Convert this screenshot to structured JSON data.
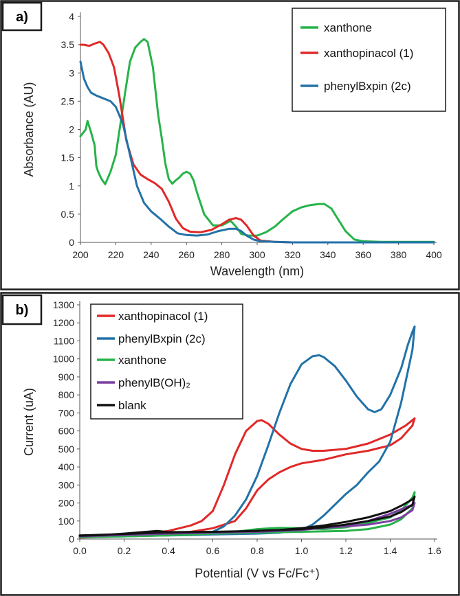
{
  "chart_data": [
    {
      "type": "line",
      "panel_label": "a)",
      "xlabel": "Wavelength (nm)",
      "ylabel": "Absorbance (AU)",
      "xlim": [
        200,
        400
      ],
      "ylim": [
        0,
        4
      ],
      "xticks": [
        "200",
        "220",
        "240",
        "260",
        "280",
        "300",
        "320",
        "340",
        "360",
        "380",
        "400"
      ],
      "yticks": [
        "0",
        "0.5",
        "1",
        "1.5",
        "2",
        "2.5",
        "3",
        "3.5",
        "4"
      ],
      "legend_position": "top-right",
      "grid": false,
      "series": [
        {
          "name": "xanthone",
          "color": "#27b34a",
          "x": [
            200,
            203,
            204,
            206,
            208,
            209,
            210,
            212,
            214,
            217,
            220,
            225,
            228,
            231,
            234,
            236,
            238,
            241,
            244,
            246,
            248,
            250,
            252,
            254,
            256,
            258,
            260,
            262,
            264,
            266,
            270,
            275,
            280,
            285,
            288,
            291,
            295,
            300,
            305,
            310,
            315,
            320,
            325,
            330,
            335,
            338,
            342,
            345,
            350,
            355,
            360,
            370,
            380,
            390,
            400
          ],
          "y": [
            1.88,
            2.0,
            2.15,
            1.95,
            1.72,
            1.35,
            1.25,
            1.12,
            1.03,
            1.25,
            1.55,
            2.6,
            3.2,
            3.45,
            3.55,
            3.6,
            3.55,
            3.1,
            2.25,
            1.85,
            1.4,
            1.12,
            1.04,
            1.1,
            1.15,
            1.22,
            1.25,
            1.22,
            1.1,
            0.88,
            0.5,
            0.3,
            0.3,
            0.38,
            0.28,
            0.15,
            0.12,
            0.12,
            0.18,
            0.28,
            0.42,
            0.55,
            0.62,
            0.66,
            0.68,
            0.68,
            0.6,
            0.45,
            0.2,
            0.05,
            0.02,
            0.01,
            0.01,
            0.01,
            0.01
          ]
        },
        {
          "name": "xanthopinacol (1)",
          "color": "#e02928",
          "x": [
            200,
            202,
            205,
            208,
            211,
            213,
            216,
            219,
            222,
            226,
            230,
            234,
            238,
            242,
            246,
            250,
            254,
            258,
            262,
            268,
            274,
            280,
            284,
            288,
            291,
            294,
            298,
            302,
            310,
            320,
            340,
            360,
            380,
            400
          ],
          "y": [
            3.5,
            3.5,
            3.48,
            3.52,
            3.55,
            3.5,
            3.35,
            3.1,
            2.6,
            1.8,
            1.38,
            1.2,
            1.12,
            1.05,
            0.95,
            0.72,
            0.42,
            0.25,
            0.19,
            0.18,
            0.22,
            0.32,
            0.4,
            0.43,
            0.4,
            0.3,
            0.12,
            0.03,
            0.01,
            0.0,
            0.0,
            0.0,
            0.0,
            0.0
          ]
        },
        {
          "name": "phenylBxpin (2c)",
          "color": "#2272a8",
          "x": [
            200,
            202,
            204,
            206,
            209,
            213,
            217,
            220,
            224,
            228,
            232,
            236,
            240,
            245,
            250,
            255,
            260,
            266,
            272,
            278,
            284,
            288,
            291,
            294,
            298,
            302,
            310,
            320,
            340,
            360,
            380,
            400
          ],
          "y": [
            3.2,
            2.9,
            2.75,
            2.65,
            2.6,
            2.55,
            2.5,
            2.4,
            2.1,
            1.55,
            1.0,
            0.7,
            0.55,
            0.42,
            0.28,
            0.16,
            0.13,
            0.12,
            0.14,
            0.2,
            0.24,
            0.24,
            0.2,
            0.12,
            0.05,
            0.02,
            0.01,
            0.0,
            0.0,
            0.0,
            0.0,
            0.0
          ]
        }
      ]
    },
    {
      "type": "line",
      "panel_label": "b)",
      "xlabel": "Potential (V vs Fc/Fc⁺)",
      "ylabel": "Current  (uA)",
      "xlim": [
        0,
        1.6
      ],
      "ylim": [
        0,
        1300
      ],
      "xticks": [
        "0.0",
        "0.2",
        "0.4",
        "0.6",
        "0.8",
        "1.0",
        "1.2",
        "1.4",
        "1.6"
      ],
      "yticks": [
        "0",
        "100",
        "200",
        "300",
        "400",
        "500",
        "600",
        "700",
        "800",
        "900",
        "1000",
        "1100",
        "1200",
        "1300"
      ],
      "legend_position": "top-left",
      "grid": false,
      "series": [
        {
          "name": "xanthopinacol (1)",
          "color": "#e02928",
          "x": [
            0.0,
            0.1,
            0.2,
            0.3,
            0.4,
            0.5,
            0.55,
            0.6,
            0.65,
            0.7,
            0.75,
            0.8,
            0.82,
            0.85,
            0.9,
            0.95,
            1.0,
            1.05,
            1.1,
            1.2,
            1.3,
            1.4,
            1.47,
            1.5,
            1.51,
            1.5,
            1.45,
            1.4,
            1.3,
            1.2,
            1.1,
            1.0,
            0.95,
            0.9,
            0.85,
            0.8,
            0.78,
            0.75,
            0.7,
            0.6,
            0.5,
            0.4,
            0.3,
            0.2,
            0.1,
            0.0
          ],
          "y": [
            10,
            15,
            22,
            30,
            45,
            75,
            100,
            155,
            300,
            470,
            600,
            655,
            660,
            640,
            580,
            530,
            500,
            490,
            490,
            500,
            530,
            580,
            630,
            660,
            670,
            630,
            560,
            520,
            490,
            470,
            440,
            420,
            400,
            370,
            330,
            270,
            230,
            170,
            100,
            60,
            40,
            30,
            25,
            18,
            12,
            8
          ]
        },
        {
          "name": "phenylBxpin (2c)",
          "color": "#2272a8",
          "x": [
            0.0,
            0.1,
            0.2,
            0.3,
            0.4,
            0.5,
            0.55,
            0.6,
            0.65,
            0.7,
            0.75,
            0.8,
            0.85,
            0.9,
            0.95,
            1.0,
            1.05,
            1.08,
            1.1,
            1.15,
            1.2,
            1.25,
            1.3,
            1.33,
            1.36,
            1.4,
            1.45,
            1.48,
            1.5,
            1.51,
            1.5,
            1.45,
            1.4,
            1.35,
            1.3,
            1.25,
            1.2,
            1.15,
            1.1,
            1.05,
            1.0,
            0.9,
            0.8,
            0.7,
            0.6,
            0.5,
            0.4,
            0.3,
            0.2,
            0.1,
            0.0
          ],
          "y": [
            10,
            12,
            15,
            18,
            20,
            25,
            30,
            40,
            70,
            130,
            220,
            350,
            520,
            700,
            860,
            970,
            1015,
            1020,
            1010,
            960,
            880,
            790,
            720,
            705,
            720,
            800,
            950,
            1080,
            1150,
            1180,
            1050,
            760,
            540,
            430,
            370,
            300,
            250,
            190,
            130,
            80,
            50,
            35,
            30,
            28,
            25,
            22,
            20,
            18,
            15,
            12,
            10
          ]
        },
        {
          "name": "xanthone",
          "color": "#27b34a",
          "x": [
            0.0,
            0.2,
            0.4,
            0.6,
            0.7,
            0.8,
            0.9,
            1.0,
            1.1,
            1.2,
            1.3,
            1.4,
            1.45,
            1.5,
            1.51,
            1.5,
            1.45,
            1.4,
            1.3,
            1.2,
            1.0,
            0.8,
            0.6,
            0.4,
            0.2,
            0.0
          ],
          "y": [
            10,
            15,
            20,
            30,
            40,
            55,
            62,
            60,
            55,
            65,
            90,
            120,
            160,
            230,
            260,
            170,
            110,
            80,
            55,
            45,
            40,
            35,
            30,
            25,
            18,
            12
          ]
        },
        {
          "name": "phenylB(OH)₂",
          "color": "#7a3fa0",
          "x": [
            0.0,
            0.2,
            0.4,
            0.6,
            0.8,
            1.0,
            1.2,
            1.3,
            1.4,
            1.45,
            1.5,
            1.51,
            1.5,
            1.45,
            1.4,
            1.3,
            1.2,
            1.0,
            0.8,
            0.6,
            0.4,
            0.2,
            0.0
          ],
          "y": [
            15,
            22,
            30,
            35,
            40,
            50,
            75,
            100,
            140,
            165,
            190,
            200,
            160,
            120,
            100,
            80,
            70,
            55,
            45,
            38,
            32,
            25,
            18
          ]
        },
        {
          "name": "blank",
          "color": "#111111",
          "x": [
            0.0,
            0.2,
            0.35,
            0.5,
            0.7,
            0.9,
            1.0,
            1.1,
            1.2,
            1.3,
            1.4,
            1.45,
            1.5,
            1.51,
            1.5,
            1.45,
            1.4,
            1.3,
            1.2,
            1.1,
            1.0,
            0.8,
            0.6,
            0.4,
            0.35,
            0.3,
            0.2,
            0.1,
            0.0
          ],
          "y": [
            20,
            28,
            35,
            38,
            42,
            50,
            60,
            75,
            95,
            120,
            155,
            185,
            220,
            235,
            190,
            150,
            125,
            100,
            80,
            65,
            55,
            45,
            40,
            38,
            45,
            40,
            30,
            22,
            18
          ]
        }
      ]
    }
  ]
}
